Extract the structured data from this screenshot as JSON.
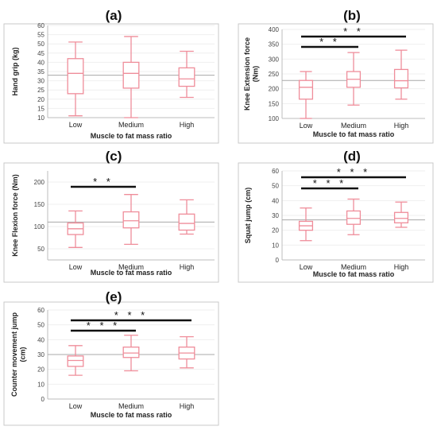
{
  "chart_data": [
    {
      "id": "a",
      "type": "box",
      "title": "(a)",
      "xlabel": "Muscle to fat mass ratio",
      "ylabel": "Hand grip (kg)",
      "categories": [
        "Low",
        "Medium",
        "High"
      ],
      "ylim": [
        10,
        60
      ],
      "yticks": [
        10,
        15,
        20,
        25,
        30,
        35,
        40,
        45,
        50,
        55,
        60
      ],
      "reference_line": 33,
      "boxes": [
        {
          "min": 11,
          "q1": 23,
          "median": 34,
          "q3": 42,
          "max": 51
        },
        {
          "min": 10,
          "q1": 26,
          "median": 34,
          "q3": 40,
          "max": 54
        },
        {
          "min": 21,
          "q1": 27,
          "median": 31,
          "q3": 37,
          "max": 46
        }
      ],
      "significance": []
    },
    {
      "id": "b",
      "type": "box",
      "title": "(b)",
      "xlabel": "Muscle to fat mass ratio",
      "ylabel": "Knee Extension force (Nm)",
      "categories": [
        "Low",
        "Medium",
        "High"
      ],
      "ylim": [
        100,
        400
      ],
      "yticks": [
        100,
        150,
        200,
        250,
        300,
        350,
        400
      ],
      "reference_line": 228,
      "boxes": [
        {
          "min": 100,
          "q1": 165,
          "median": 205,
          "q3": 228,
          "max": 258
        },
        {
          "min": 145,
          "q1": 205,
          "median": 232,
          "q3": 258,
          "max": 322
        },
        {
          "min": 165,
          "q1": 203,
          "median": 227,
          "q3": 265,
          "max": 330
        }
      ],
      "significance": [
        {
          "from": 0,
          "to": 1,
          "label": "**"
        },
        {
          "from": 0,
          "to": 2,
          "label": "**"
        }
      ]
    },
    {
      "id": "c",
      "type": "box",
      "title": "(c)",
      "xlabel": "Muscle to fat mass ratio",
      "ylabel": "Knee Flexion force (Nm)",
      "categories": [
        "Low",
        "Medium",
        "High"
      ],
      "ylim": [
        25,
        225
      ],
      "yticks": [
        50,
        100,
        150,
        200
      ],
      "reference_line": 110,
      "boxes": [
        {
          "min": 53,
          "q1": 82,
          "median": 95,
          "q3": 108,
          "max": 135
        },
        {
          "min": 60,
          "q1": 97,
          "median": 113,
          "q3": 133,
          "max": 172
        },
        {
          "min": 83,
          "q1": 92,
          "median": 107,
          "q3": 128,
          "max": 160
        }
      ],
      "significance": [
        {
          "from": 0,
          "to": 1,
          "label": "**"
        }
      ]
    },
    {
      "id": "d",
      "type": "box",
      "title": "(d)",
      "xlabel": "Muscle to fat mass ratio",
      "ylabel": "Squat jump (cm)",
      "categories": [
        "Low",
        "Medium",
        "High"
      ],
      "ylim": [
        0,
        60
      ],
      "yticks": [
        0,
        10,
        20,
        30,
        40,
        50,
        60
      ],
      "reference_line": 27,
      "boxes": [
        {
          "min": 13,
          "q1": 20,
          "median": 23,
          "q3": 26,
          "max": 35
        },
        {
          "min": 17,
          "q1": 24,
          "median": 28,
          "q3": 33,
          "max": 41
        },
        {
          "min": 22,
          "q1": 25,
          "median": 28,
          "q3": 32,
          "max": 39
        }
      ],
      "significance": [
        {
          "from": 0,
          "to": 1,
          "label": "***"
        },
        {
          "from": 0,
          "to": 2,
          "label": "***"
        }
      ]
    },
    {
      "id": "e",
      "type": "box",
      "title": "(e)",
      "xlabel": "Muscle to fat mass ratio",
      "ylabel": "Counter movement jump (cm)",
      "categories": [
        "Low",
        "Medium",
        "High"
      ],
      "ylim": [
        0,
        60
      ],
      "yticks": [
        0,
        10,
        20,
        30,
        40,
        50,
        60
      ],
      "reference_line": 30,
      "boxes": [
        {
          "min": 16,
          "q1": 22,
          "median": 26,
          "q3": 29,
          "max": 36
        },
        {
          "min": 19,
          "q1": 28,
          "median": 31,
          "q3": 35,
          "max": 43
        },
        {
          "min": 21,
          "q1": 27,
          "median": 31,
          "q3": 35,
          "max": 42
        }
      ],
      "significance": [
        {
          "from": 0,
          "to": 1,
          "label": "***"
        },
        {
          "from": 0,
          "to": 2,
          "label": "***"
        }
      ]
    }
  ]
}
